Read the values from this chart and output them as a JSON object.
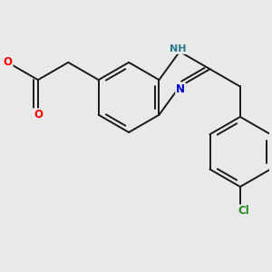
{
  "background_color": "#e9e9e9",
  "bond_color": "#1a1a1a",
  "bond_width": 1.4,
  "atom_colors": {
    "O": "#ff0000",
    "N": "#0000cc",
    "NH": "#2a7a8a",
    "Cl": "#228b22",
    "C": "#1a1a1a"
  },
  "font_size": 8.5
}
